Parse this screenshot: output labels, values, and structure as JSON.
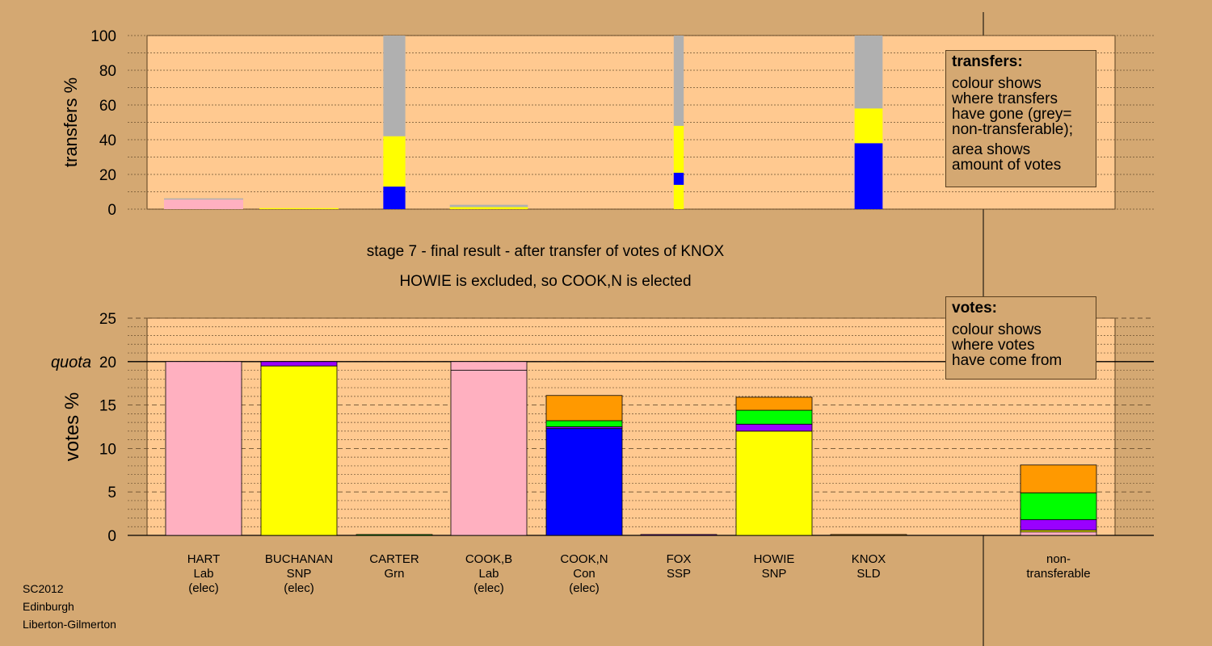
{
  "stage_caption": "stage 7 - final result - after transfer of votes of KNOX",
  "result_caption": "HOWIE is excluded, so COOK,N is elected",
  "footer": [
    "SC2012",
    "Edinburgh",
    "Liberton-Gilmerton"
  ],
  "legend_transfers": {
    "title": "transfers:",
    "lines": [
      "colour shows",
      "where transfers",
      "have gone (grey=",
      "non-transferable);"
    ],
    "lines2": [
      "area shows",
      "amount of votes"
    ]
  },
  "legend_votes": {
    "title": "votes:",
    "lines": [
      "colour shows",
      "where votes",
      "have come from"
    ]
  },
  "colors": {
    "Lab": "#ffb0c0",
    "SNP": "#ffff00",
    "Grn": "#00ff00",
    "Con": "#0000ff",
    "SSP": "#800080",
    "SLD": "#ff8c00",
    "LibDem": "#ff9900",
    "Purple": "#9900ff",
    "NonTransferable": "#b0b0b0",
    "plot_bg": "#ffc990"
  },
  "chart_data": [
    {
      "type": "bar",
      "ylabel": "transfers %",
      "ylim": [
        0,
        100
      ],
      "yticks": [
        0,
        20,
        40,
        60,
        80,
        100
      ],
      "categories": [
        "HART",
        "BUCHANAN",
        "CARTER",
        "COOK,B",
        "COOK,N",
        "FOX",
        "HOWIE",
        "KNOX",
        "non-transferable"
      ],
      "bars": [
        {
          "candidate": "HART",
          "width_share": 0.42,
          "segments": [
            {
              "color": "Lab",
              "value": 5.5
            },
            {
              "color": "NonTransferable",
              "value": 0.7
            }
          ]
        },
        {
          "candidate": "BUCHANAN",
          "width_share": 0.4,
          "segments": [
            {
              "color": "SNP",
              "value": 0.6
            }
          ]
        },
        {
          "candidate": "CARTER",
          "width_share": 0.11,
          "segments": [
            {
              "color": "Con",
              "value": 13
            },
            {
              "color": "SNP",
              "value": 29
            },
            {
              "color": "NonTransferable",
              "value": 58
            }
          ]
        },
        {
          "candidate": "COOK,B",
          "width_share": 0.39,
          "segments": [
            {
              "color": "SNP",
              "value": 1.2
            },
            {
              "color": "NonTransferable",
              "value": 1.3
            }
          ]
        },
        {
          "candidate": "COOK,N",
          "width_share": 0,
          "segments": []
        },
        {
          "candidate": "FOX",
          "width_share": 0.05,
          "segments": [
            {
              "color": "SNP",
              "value": 14
            },
            {
              "color": "Con",
              "value": 7
            },
            {
              "color": "SNP",
              "value": 27
            },
            {
              "color": "NonTransferable",
              "value": 52
            }
          ]
        },
        {
          "candidate": "HOWIE",
          "width_share": 0,
          "segments": []
        },
        {
          "candidate": "KNOX",
          "width_share": 0.14,
          "segments": [
            {
              "color": "Con",
              "value": 38
            },
            {
              "color": "SNP",
              "value": 20
            },
            {
              "color": "NonTransferable",
              "value": 42
            }
          ]
        }
      ]
    },
    {
      "type": "bar",
      "ylabel": "votes %",
      "ylim": [
        0,
        25
      ],
      "yticks": [
        0,
        5,
        10,
        15,
        20,
        25
      ],
      "quota": 20,
      "quota_label": "quota",
      "categories": [
        {
          "name": "HART",
          "party": "Lab",
          "status": "(elec)"
        },
        {
          "name": "BUCHANAN",
          "party": "SNP",
          "status": "(elec)"
        },
        {
          "name": "CARTER",
          "party": "Grn",
          "status": ""
        },
        {
          "name": "COOK,B",
          "party": "Lab",
          "status": "(elec)"
        },
        {
          "name": "COOK,N",
          "party": "Con",
          "status": "(elec)"
        },
        {
          "name": "FOX",
          "party": "SSP",
          "status": ""
        },
        {
          "name": "HOWIE",
          "party": "SNP",
          "status": ""
        },
        {
          "name": "KNOX",
          "party": "SLD",
          "status": ""
        },
        {
          "name": "non-",
          "party": "transferable",
          "status": ""
        }
      ],
      "bars": [
        {
          "candidate": "HART",
          "segments": [
            {
              "color": "Lab",
              "value": 20
            }
          ]
        },
        {
          "candidate": "BUCHANAN",
          "segments": [
            {
              "color": "SNP",
              "value": 19.5
            },
            {
              "color": "Purple",
              "value": 0.5
            }
          ]
        },
        {
          "candidate": "CARTER",
          "segments": [
            {
              "color": "Grn",
              "value": 0.1
            }
          ]
        },
        {
          "candidate": "COOK,B",
          "segments": [
            {
              "color": "Lab",
              "value": 19
            },
            {
              "color": "Lab",
              "value": 1
            }
          ]
        },
        {
          "candidate": "COOK,N",
          "segments": [
            {
              "color": "Con",
              "value": 12.3
            },
            {
              "color": "Purple",
              "value": 0.2
            },
            {
              "color": "Grn",
              "value": 0.7
            },
            {
              "color": "LibDem",
              "value": 2.9
            }
          ]
        },
        {
          "candidate": "FOX",
          "segments": [
            {
              "color": "Purple",
              "value": 0.1
            }
          ]
        },
        {
          "candidate": "HOWIE",
          "segments": [
            {
              "color": "SNP",
              "value": 12
            },
            {
              "color": "Purple",
              "value": 0.8
            },
            {
              "color": "Grn",
              "value": 1.6
            },
            {
              "color": "LibDem",
              "value": 1.5
            }
          ]
        },
        {
          "candidate": "KNOX",
          "segments": [
            {
              "color": "LibDem",
              "value": 0.1
            }
          ]
        },
        {
          "candidate": "non-transferable",
          "segments": [
            {
              "color": "Lab",
              "value": 0.4
            },
            {
              "color": "SNP",
              "value": 0.2
            },
            {
              "color": "Purple",
              "value": 1.2
            },
            {
              "color": "Grn",
              "value": 3.1
            },
            {
              "color": "LibDem",
              "value": 3.2
            }
          ]
        }
      ]
    }
  ]
}
